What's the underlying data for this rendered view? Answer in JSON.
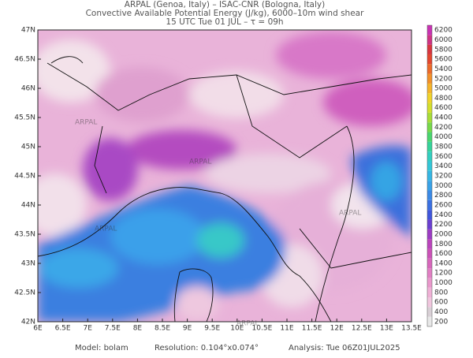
{
  "header": {
    "line1": "ARPAL (Genoa, Italy)  –  ISAC-CNR (Bologna, Italy)",
    "line2": "Convective Available Potential Energy (J/kg), 6000–10m wind shear",
    "line3": "15 UTC Tue 01 JUL  –  τ = 09h"
  },
  "map": {
    "lat_labels": [
      "42N",
      "42.5N",
      "43N",
      "43.5N",
      "44N",
      "44.5N",
      "45N",
      "45.5N",
      "46N",
      "46.5N",
      "47N"
    ],
    "lon_labels": [
      "6E",
      "6.5E",
      "7E",
      "7.5E",
      "8E",
      "8.5E",
      "9E",
      "9.5E",
      "10E",
      "10.5E",
      "11E",
      "11.5E",
      "12E",
      "12.5E",
      "13E",
      "13.5E"
    ],
    "watermark": "ARPAL"
  },
  "colorbar": {
    "labels": [
      "200",
      "400",
      "600",
      "800",
      "1000",
      "1200",
      "1400",
      "1600",
      "1800",
      "2000",
      "2200",
      "2400",
      "2600",
      "2800",
      "3000",
      "3200",
      "3400",
      "3600",
      "3800",
      "4000",
      "4200",
      "4400",
      "4600",
      "4800",
      "5000",
      "5200",
      "5400",
      "5600",
      "5800",
      "6000",
      "6200"
    ]
  },
  "footer": {
    "model": "Model: bolam",
    "resolution": "Resolution: 0.104°x0.074°",
    "analysis": "Analysis: Tue 06Z01JUL2025"
  }
}
